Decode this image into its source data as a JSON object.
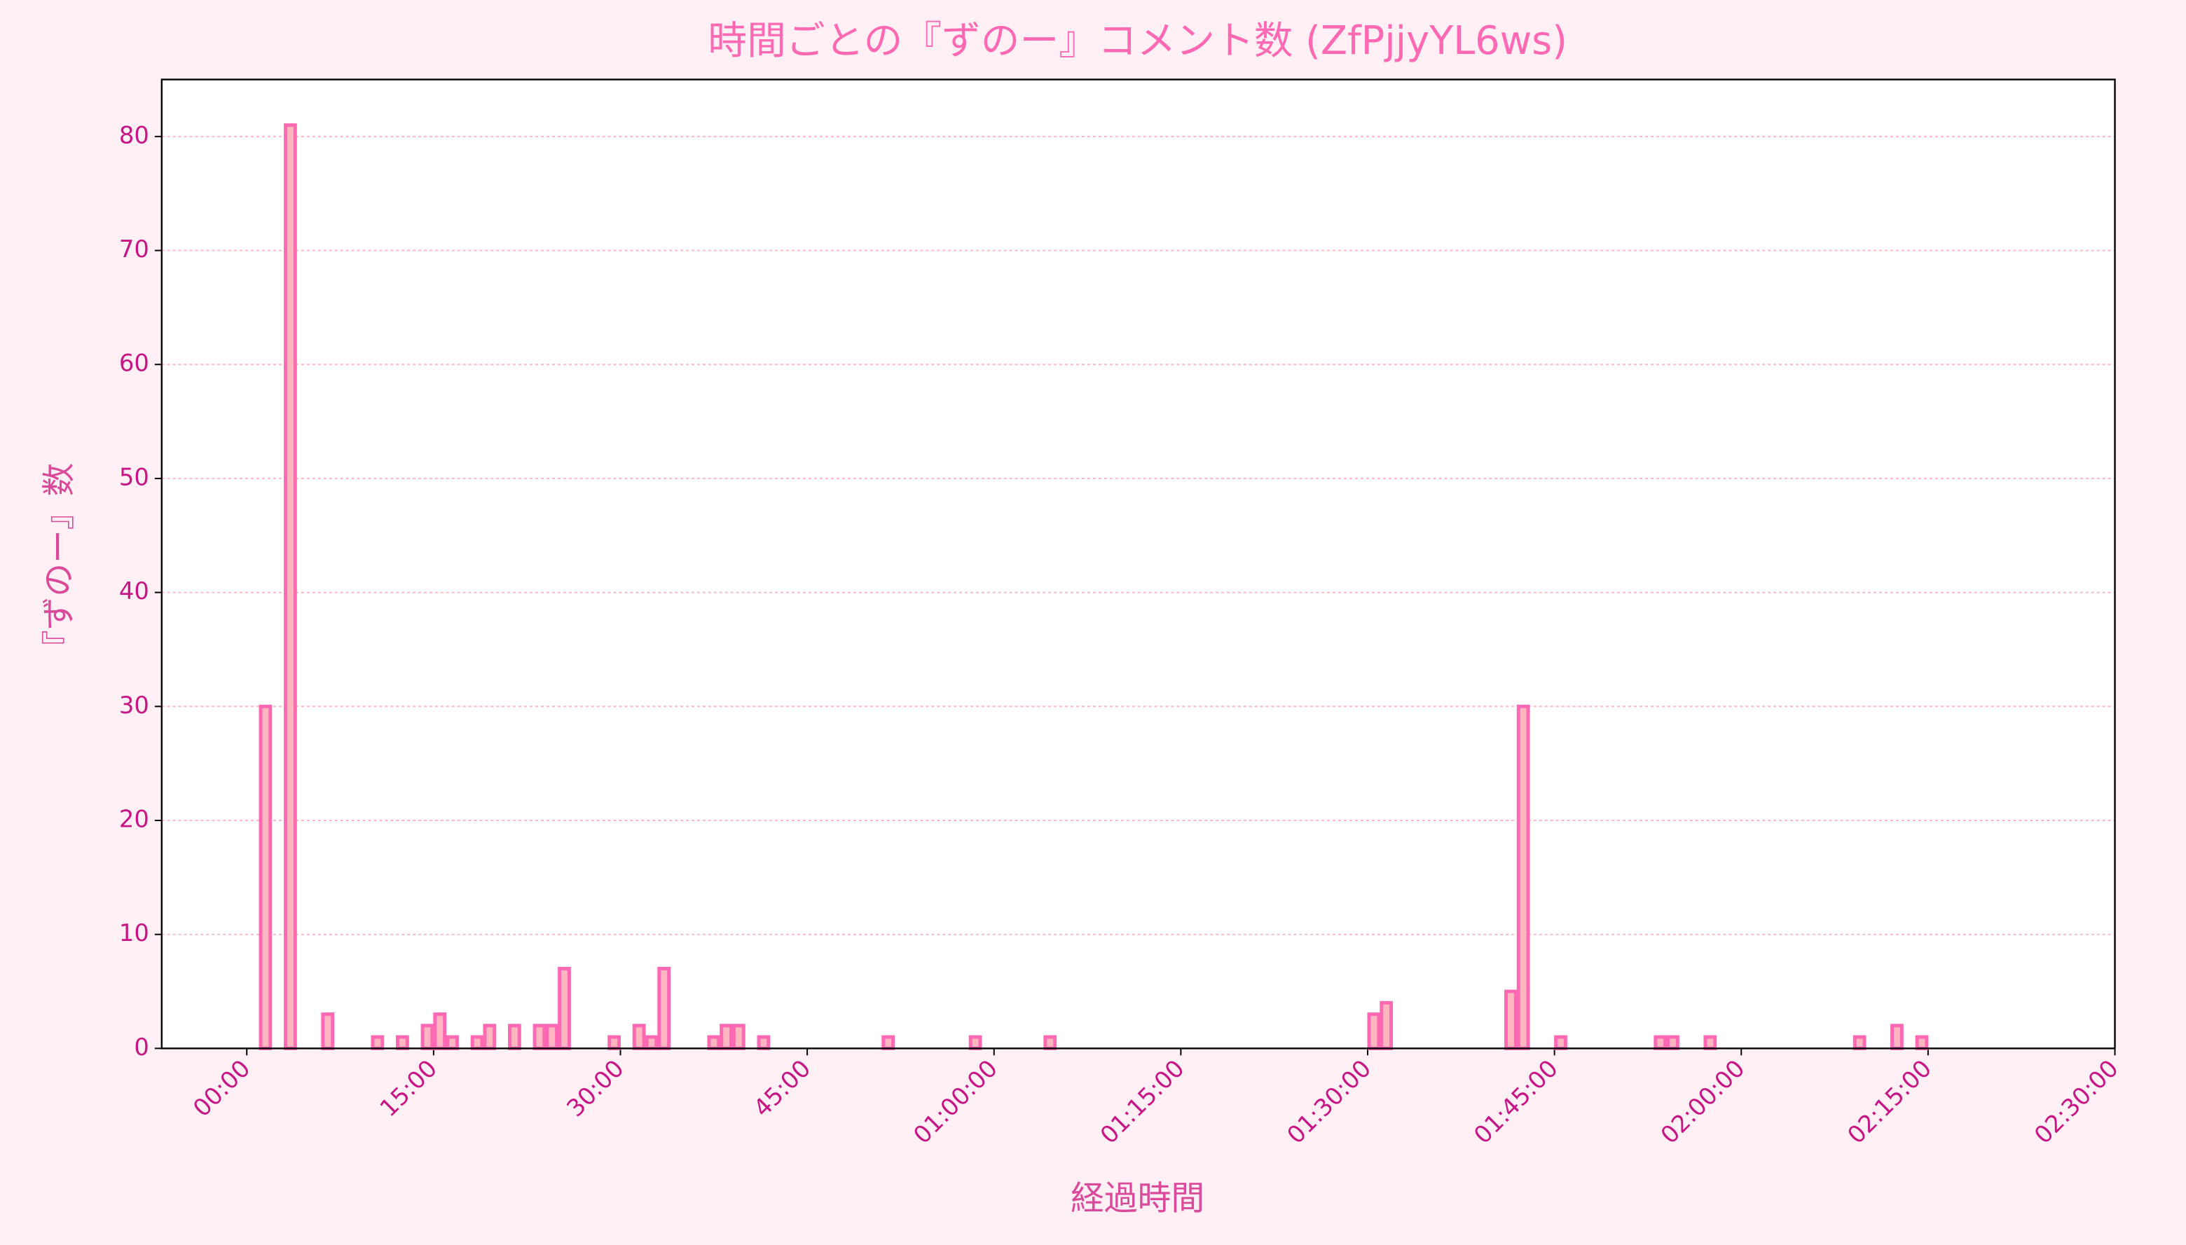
{
  "chart_data": {
    "type": "histogram",
    "title": "時間ごとの『ずのー』コメント数 (ZfPjjyYL6ws)",
    "x_label": "経過時間",
    "y_label": "『ずのー』数",
    "bins": [
      0,
      1,
      2,
      3,
      4,
      5,
      6,
      7,
      8,
      9,
      10,
      11,
      12,
      13,
      14,
      15,
      16,
      17,
      18,
      19,
      20,
      21,
      22,
      23,
      24,
      25,
      26,
      27,
      28,
      29,
      30,
      31,
      32,
      33,
      34,
      35,
      36,
      37,
      38,
      39,
      40,
      41,
      42,
      43,
      44,
      45,
      46,
      47,
      48,
      49,
      50,
      51,
      52,
      53,
      54,
      55,
      56,
      57,
      58,
      59,
      60,
      61,
      62,
      63,
      64,
      65,
      66,
      67,
      68,
      69,
      70,
      71,
      72,
      73,
      74,
      75,
      76,
      77,
      78,
      79,
      80,
      81,
      82,
      83,
      84,
      85,
      86,
      87,
      88,
      89,
      90,
      91,
      92,
      93,
      94,
      95,
      96,
      97,
      98,
      99,
      100,
      101,
      102,
      103,
      104,
      105,
      106,
      107,
      108,
      109,
      110,
      111,
      112,
      113,
      114,
      115,
      116,
      117,
      118,
      119,
      120,
      121,
      122,
      123,
      124,
      125,
      126,
      127,
      128,
      129,
      130,
      131,
      132,
      133,
      134,
      135,
      136,
      137,
      138
    ],
    "counts": [
      0,
      30,
      0,
      81,
      0,
      0,
      3,
      0,
      0,
      0,
      1,
      0,
      1,
      0,
      2,
      3,
      1,
      0,
      1,
      2,
      0,
      2,
      0,
      2,
      2,
      7,
      0,
      0,
      0,
      1,
      0,
      2,
      1,
      7,
      0,
      0,
      0,
      1,
      2,
      2,
      0,
      1,
      0,
      0,
      0,
      0,
      0,
      0,
      0,
      0,
      0,
      1,
      0,
      0,
      0,
      0,
      0,
      0,
      1,
      0,
      0,
      0,
      0,
      0,
      1,
      0,
      0,
      0,
      0,
      0,
      0,
      0,
      0,
      0,
      0,
      0,
      0,
      0,
      0,
      0,
      0,
      0,
      0,
      0,
      0,
      0,
      0,
      0,
      0,
      0,
      3,
      4,
      0,
      0,
      0,
      0,
      0,
      0,
      0,
      0,
      0,
      5,
      30,
      0,
      0,
      1,
      0,
      0,
      0,
      0,
      0,
      0,
      0,
      1,
      1,
      0,
      0,
      1,
      0,
      0,
      0,
      0,
      0,
      0,
      0,
      0,
      0,
      0,
      0,
      1,
      0,
      0,
      2,
      0,
      1,
      0,
      0,
      0
    ],
    "color": "#ffb6c1",
    "edge_color": "#ff69b4",
    "xlim": [
      -6.83,
      150
    ],
    "ylim": [
      0,
      85
    ],
    "xticks": [
      {
        "value": 0,
        "label": "00:00"
      },
      {
        "value": 15,
        "label": "15:00"
      },
      {
        "value": 30,
        "label": "30:00"
      },
      {
        "value": 45,
        "label": "45:00"
      },
      {
        "value": 60,
        "label": "01:00:00"
      },
      {
        "value": 75,
        "label": "01:15:00"
      },
      {
        "value": 90,
        "label": "01:30:00"
      },
      {
        "value": 105,
        "label": "01:45:00"
      },
      {
        "value": 120,
        "label": "02:00:00"
      },
      {
        "value": 135,
        "label": "02:15:00"
      },
      {
        "value": 150,
        "label": "02:30:00"
      }
    ],
    "yticks": [
      0,
      10,
      20,
      30,
      40,
      50,
      60,
      70,
      80
    ],
    "grid": true
  }
}
